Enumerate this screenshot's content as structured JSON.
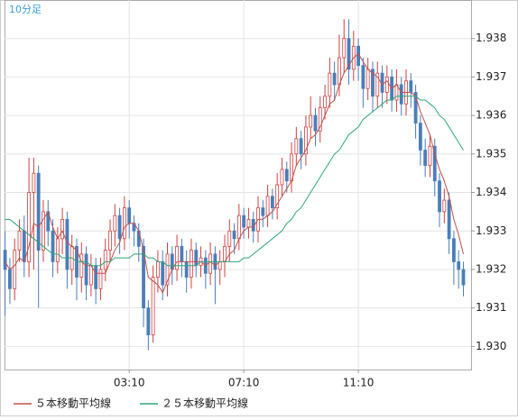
{
  "chart_data": {
    "type": "candlestick",
    "title": "10分足",
    "categories": [
      null,
      null,
      null,
      null,
      null,
      null,
      null,
      null,
      null,
      null,
      null,
      null,
      null,
      null,
      null,
      null,
      null,
      null,
      null,
      null,
      null,
      null,
      null,
      null,
      null,
      null,
      "03:10",
      null,
      null,
      null,
      null,
      null,
      null,
      null,
      null,
      null,
      null,
      null,
      null,
      null,
      null,
      null,
      null,
      null,
      null,
      null,
      null,
      null,
      null,
      null,
      "07:10",
      null,
      null,
      null,
      null,
      null,
      null,
      null,
      null,
      null,
      null,
      null,
      null,
      null,
      null,
      null,
      null,
      null,
      null,
      null,
      null,
      null,
      null,
      null,
      "11:10",
      null,
      null,
      null,
      null,
      null,
      null,
      null,
      null,
      null,
      null,
      null,
      null,
      null,
      null,
      null,
      null,
      null,
      null,
      null,
      null,
      null,
      null
    ],
    "open": [
      1.9325,
      1.932,
      1.9315,
      1.9325,
      1.933,
      1.9322,
      1.934,
      1.9345,
      1.9325,
      1.9335,
      1.933,
      1.9322,
      1.9328,
      1.9333,
      1.932,
      1.9326,
      1.9318,
      1.9324,
      1.9316,
      1.9321,
      1.9315,
      1.932,
      1.9325,
      1.933,
      1.9334,
      1.9328,
      1.9336,
      1.9332,
      1.933,
      1.9326,
      1.931,
      1.9303,
      1.9318,
      1.9322,
      1.9316,
      1.9324,
      1.932,
      1.9326,
      1.9322,
      1.9318,
      1.9325,
      1.9321,
      1.9323,
      1.9319,
      1.9324,
      1.932,
      1.9322,
      1.9326,
      1.933,
      1.9328,
      1.9334,
      1.9331,
      1.9333,
      1.933,
      1.9336,
      1.9334,
      1.9339,
      1.9336,
      1.9342,
      1.9346,
      1.9343,
      1.935,
      1.9354,
      1.935,
      1.9357,
      1.936,
      1.9356,
      1.9362,
      1.9365,
      1.9371,
      1.9368,
      1.9375,
      1.938,
      1.9372,
      1.9378,
      1.9373,
      1.9367,
      1.9372,
      1.9365,
      1.9371,
      1.9366,
      1.937,
      1.9364,
      1.9368,
      1.9363,
      1.9369,
      1.9366,
      1.9358,
      1.9351,
      1.9347,
      1.9352,
      1.9343,
      1.9335,
      1.9338,
      1.9328,
      1.9322,
      1.932
    ],
    "high": [
      1.933,
      1.9323,
      1.9328,
      1.9333,
      1.9334,
      1.9349,
      1.9349,
      1.9347,
      1.9338,
      1.9338,
      1.9333,
      1.9331,
      1.9336,
      1.9335,
      1.9329,
      1.9328,
      1.9327,
      1.9326,
      1.9324,
      1.9323,
      1.9323,
      1.9328,
      1.9333,
      1.9337,
      1.9336,
      1.9339,
      1.9338,
      1.9334,
      1.9332,
      1.9328,
      1.9312,
      1.9321,
      1.9325,
      1.9325,
      1.9327,
      1.9326,
      1.9329,
      1.9328,
      1.9325,
      1.9328,
      1.9327,
      1.9326,
      1.9325,
      1.9327,
      1.9326,
      1.9325,
      1.9329,
      1.9333,
      1.9332,
      1.9337,
      1.9336,
      1.9336,
      1.9335,
      1.9339,
      1.9338,
      1.9342,
      1.9341,
      1.9345,
      1.9349,
      1.9348,
      1.9353,
      1.9357,
      1.9356,
      1.936,
      1.9365,
      1.9362,
      1.9365,
      1.9368,
      1.9375,
      1.9374,
      1.9381,
      1.9385,
      1.9385,
      1.9382,
      1.938,
      1.9375,
      1.9375,
      1.9374,
      1.9374,
      1.9373,
      1.9373,
      1.9372,
      1.9372,
      1.937,
      1.9372,
      1.9371,
      1.9368,
      1.936,
      1.9354,
      1.9355,
      1.9354,
      1.9345,
      1.9341,
      1.934,
      1.933,
      1.9325,
      1.9322
    ],
    "low": [
      1.9308,
      1.9311,
      1.9312,
      1.9322,
      1.9318,
      1.9318,
      1.932,
      1.931,
      1.9322,
      1.9326,
      1.9318,
      1.9319,
      1.9324,
      1.9315,
      1.9316,
      1.9312,
      1.9314,
      1.9312,
      1.9313,
      1.9311,
      1.9312,
      1.9317,
      1.9322,
      1.9326,
      1.9324,
      1.9325,
      1.9328,
      1.9326,
      1.9322,
      1.9305,
      1.9299,
      1.9301,
      1.9314,
      1.9312,
      1.9313,
      1.9316,
      1.9317,
      1.9318,
      1.9314,
      1.9315,
      1.9318,
      1.9318,
      1.9315,
      1.9316,
      1.9311,
      1.9316,
      1.9318,
      1.9322,
      1.9324,
      1.9325,
      1.9328,
      1.9328,
      1.9327,
      1.9327,
      1.9331,
      1.9331,
      1.9333,
      1.9333,
      1.9339,
      1.934,
      1.934,
      1.9347,
      1.9346,
      1.9347,
      1.9354,
      1.9352,
      1.9353,
      1.9359,
      1.9362,
      1.9364,
      1.9365,
      1.9371,
      1.9368,
      1.9369,
      1.9369,
      1.9362,
      1.9364,
      1.9361,
      1.9362,
      1.9362,
      1.9363,
      1.9361,
      1.9361,
      1.936,
      1.936,
      1.9362,
      1.9354,
      1.9347,
      1.9344,
      1.9344,
      1.9339,
      1.9331,
      1.9332,
      1.9324,
      1.9316,
      1.9315,
      1.9313
    ],
    "close": [
      1.932,
      1.9315,
      1.9325,
      1.933,
      1.9322,
      1.934,
      1.9345,
      1.9325,
      1.9335,
      1.933,
      1.9322,
      1.9328,
      1.9333,
      1.932,
      1.9326,
      1.9318,
      1.9324,
      1.9316,
      1.9321,
      1.9315,
      1.932,
      1.9325,
      1.933,
      1.9334,
      1.9328,
      1.9336,
      1.9332,
      1.933,
      1.9326,
      1.931,
      1.9303,
      1.9318,
      1.9322,
      1.9316,
      1.9324,
      1.932,
      1.9326,
      1.9322,
      1.9318,
      1.9325,
      1.9321,
      1.9323,
      1.9319,
      1.9324,
      1.932,
      1.9322,
      1.9326,
      1.933,
      1.9328,
      1.9334,
      1.9331,
      1.9333,
      1.933,
      1.9336,
      1.9334,
      1.9339,
      1.9336,
      1.9342,
      1.9346,
      1.9343,
      1.935,
      1.9354,
      1.935,
      1.9357,
      1.936,
      1.9356,
      1.9362,
      1.9365,
      1.9371,
      1.9368,
      1.9375,
      1.938,
      1.9372,
      1.9378,
      1.9373,
      1.9367,
      1.9372,
      1.9365,
      1.9371,
      1.9366,
      1.937,
      1.9364,
      1.9368,
      1.9363,
      1.9369,
      1.9366,
      1.9358,
      1.9351,
      1.9347,
      1.9352,
      1.9343,
      1.9335,
      1.9338,
      1.9328,
      1.9322,
      1.932,
      1.9316
    ],
    "up_color": "#d04040",
    "down_color": "#4a7eb8",
    "series": [
      {
        "name": "５本移動平均線",
        "color": "#c0504d",
        "values": [
          1.9322,
          1.932,
          1.9321,
          1.9323,
          1.9322,
          1.9326,
          1.9332,
          1.9331,
          1.9333,
          1.9335,
          1.9331,
          1.9328,
          1.933,
          1.9327,
          1.9326,
          1.9325,
          1.9322,
          1.9321,
          1.9321,
          1.9319,
          1.9319,
          1.9319,
          1.9322,
          1.9325,
          1.9327,
          1.9331,
          1.9332,
          1.9332,
          1.933,
          1.9325,
          1.9318,
          1.9317,
          1.9316,
          1.9314,
          1.9317,
          1.932,
          1.9322,
          1.9322,
          1.9322,
          1.9322,
          1.9322,
          1.9322,
          1.9321,
          1.9322,
          1.9321,
          1.9322,
          1.9322,
          1.9324,
          1.9325,
          1.9328,
          1.933,
          1.9331,
          1.9331,
          1.9333,
          1.9333,
          1.9334,
          1.9335,
          1.9337,
          1.9339,
          1.9341,
          1.9343,
          1.9347,
          1.9349,
          1.9351,
          1.9354,
          1.9355,
          1.9357,
          1.936,
          1.9363,
          1.9364,
          1.9368,
          1.9371,
          1.9373,
          1.9375,
          1.9376,
          1.9374,
          1.9372,
          1.9371,
          1.937,
          1.9368,
          1.9369,
          1.9367,
          1.9368,
          1.9366,
          1.9366,
          1.9366,
          1.9365,
          1.9361,
          1.9358,
          1.9355,
          1.935,
          1.9346,
          1.9343,
          1.9339,
          1.9333,
          1.9329,
          1.9324
        ]
      },
      {
        "name": "２５本移動平均線",
        "color": "#2fa57a",
        "values": [
          1.9333,
          1.9333,
          1.9332,
          1.9331,
          1.933,
          1.9329,
          1.9328,
          1.9327,
          1.9326,
          1.9325,
          1.9324,
          1.9324,
          1.9323,
          1.9323,
          1.9323,
          1.9322,
          1.9322,
          1.9322,
          1.9321,
          1.9321,
          1.9321,
          1.9322,
          1.9322,
          1.9323,
          1.9323,
          1.9323,
          1.9323,
          1.9324,
          1.9324,
          1.9324,
          1.9323,
          1.9323,
          1.9322,
          1.9322,
          1.9321,
          1.9321,
          1.9321,
          1.9321,
          1.9321,
          1.9321,
          1.9321,
          1.9322,
          1.9322,
          1.9322,
          1.9322,
          1.9322,
          1.9322,
          1.9322,
          1.9322,
          1.9322,
          1.9323,
          1.9323,
          1.9324,
          1.9325,
          1.9326,
          1.9327,
          1.9328,
          1.9329,
          1.933,
          1.9332,
          1.9333,
          1.9335,
          1.9336,
          1.9338,
          1.934,
          1.9342,
          1.9344,
          1.9346,
          1.9348,
          1.935,
          1.9351,
          1.9353,
          1.9355,
          1.9356,
          1.9357,
          1.9359,
          1.936,
          1.9361,
          1.9362,
          1.9363,
          1.9364,
          1.9364,
          1.9365,
          1.9365,
          1.9365,
          1.9365,
          1.9365,
          1.9364,
          1.9364,
          1.9363,
          1.9362,
          1.936,
          1.9359,
          1.9357,
          1.9355,
          1.9353,
          1.9351
        ]
      }
    ],
    "ylim": [
      1.9294,
      1.939
    ],
    "yticks": [
      {
        "value": 1.93,
        "label": "1.930"
      },
      {
        "value": 1.931,
        "label": "1.931"
      },
      {
        "value": 1.932,
        "label": "1.932"
      },
      {
        "value": 1.933,
        "label": "1.933"
      },
      {
        "value": 1.934,
        "label": "1.934"
      },
      {
        "value": 1.935,
        "label": "1.935"
      },
      {
        "value": 1.936,
        "label": "1.936"
      },
      {
        "value": 1.937,
        "label": "1.937"
      },
      {
        "value": 1.938,
        "label": "1.938"
      }
    ],
    "grid": true
  }
}
